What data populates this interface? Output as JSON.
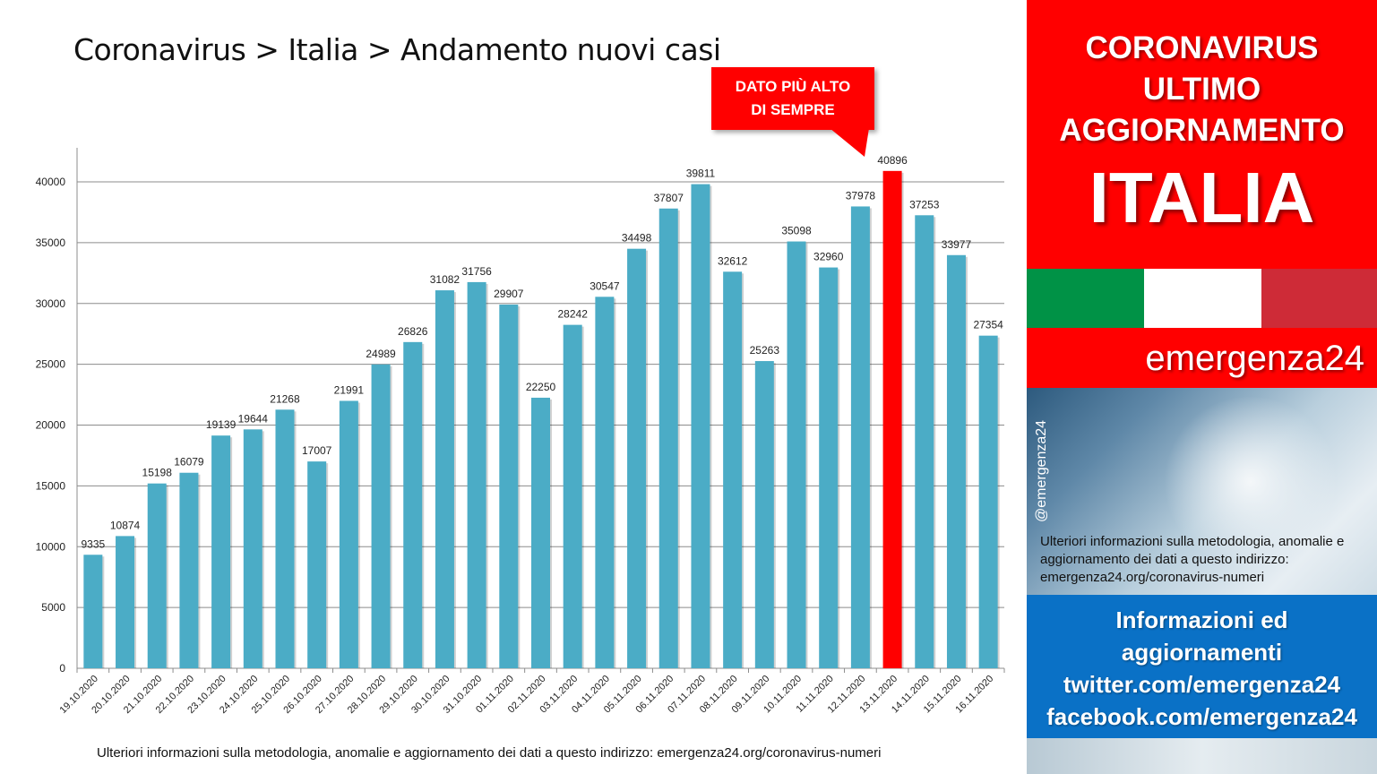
{
  "title": "Coronavirus > Italia > Andamento nuovi casi",
  "callout": {
    "line1": "DATO PIÙ ALTO",
    "line2": "DI SEMPRE"
  },
  "footnote": "Ulteriori informazioni sulla metodologia, anomalie e aggiornamento dei dati a questo indirizzo: emergenza24.org/coronavirus-numeri",
  "sidebar": {
    "line1": "CORONAVIRUS",
    "line2": "ULTIMO",
    "line3": "AGGIORNAMENTO",
    "line4": "ITALIA",
    "brand": "emergenza24",
    "handle": "@emergenza24",
    "note": "Ulteriori informazioni sulla metodologia, anomalie e aggiornamento dei dati a questo indirizzo: emergenza24.org/coronavirus-numeri",
    "info": [
      "Informazioni ed",
      "aggiornamenti",
      "twitter.com/emergenza24",
      "facebook.com/emergenza24"
    ]
  },
  "colors": {
    "bar": "#4bacc6",
    "highlight_bar": "#ff0000",
    "accent_red": "#ff0000",
    "info_blue": "#0a71c6",
    "flag_green": "#009246",
    "flag_white": "#ffffff",
    "flag_red": "#ce2b37"
  },
  "chart_data": {
    "type": "bar",
    "categories": [
      "19.10.2020",
      "20.10.2020",
      "21.10.2020",
      "22.10.2020",
      "23.10.2020",
      "24.10.2020",
      "25.10.2020",
      "26.10.2020",
      "27.10.2020",
      "28.10.2020",
      "29.10.2020",
      "30.10.2020",
      "31.10.2020",
      "01.11.2020",
      "02.11.2020",
      "03.11.2020",
      "04.11.2020",
      "05.11.2020",
      "06.11.2020",
      "07.11.2020",
      "08.11.2020",
      "09.11.2020",
      "10.11.2020",
      "11.11.2020",
      "12.11.2020",
      "13.11.2020",
      "14.11.2020",
      "15.11.2020",
      "16.11.2020"
    ],
    "values": [
      9335,
      10874,
      15198,
      16079,
      19139,
      19644,
      21268,
      17007,
      21991,
      24989,
      26826,
      31082,
      31756,
      29907,
      22250,
      28242,
      30547,
      34498,
      37807,
      39811,
      32612,
      25263,
      35098,
      32960,
      37978,
      40896,
      37253,
      33977,
      27354
    ],
    "highlight_category": "13.11.2020",
    "ylim": [
      0,
      40000
    ],
    "yticks": [
      0,
      5000,
      10000,
      15000,
      20000,
      25000,
      30000,
      35000,
      40000
    ],
    "grid": true,
    "legend": "none"
  }
}
